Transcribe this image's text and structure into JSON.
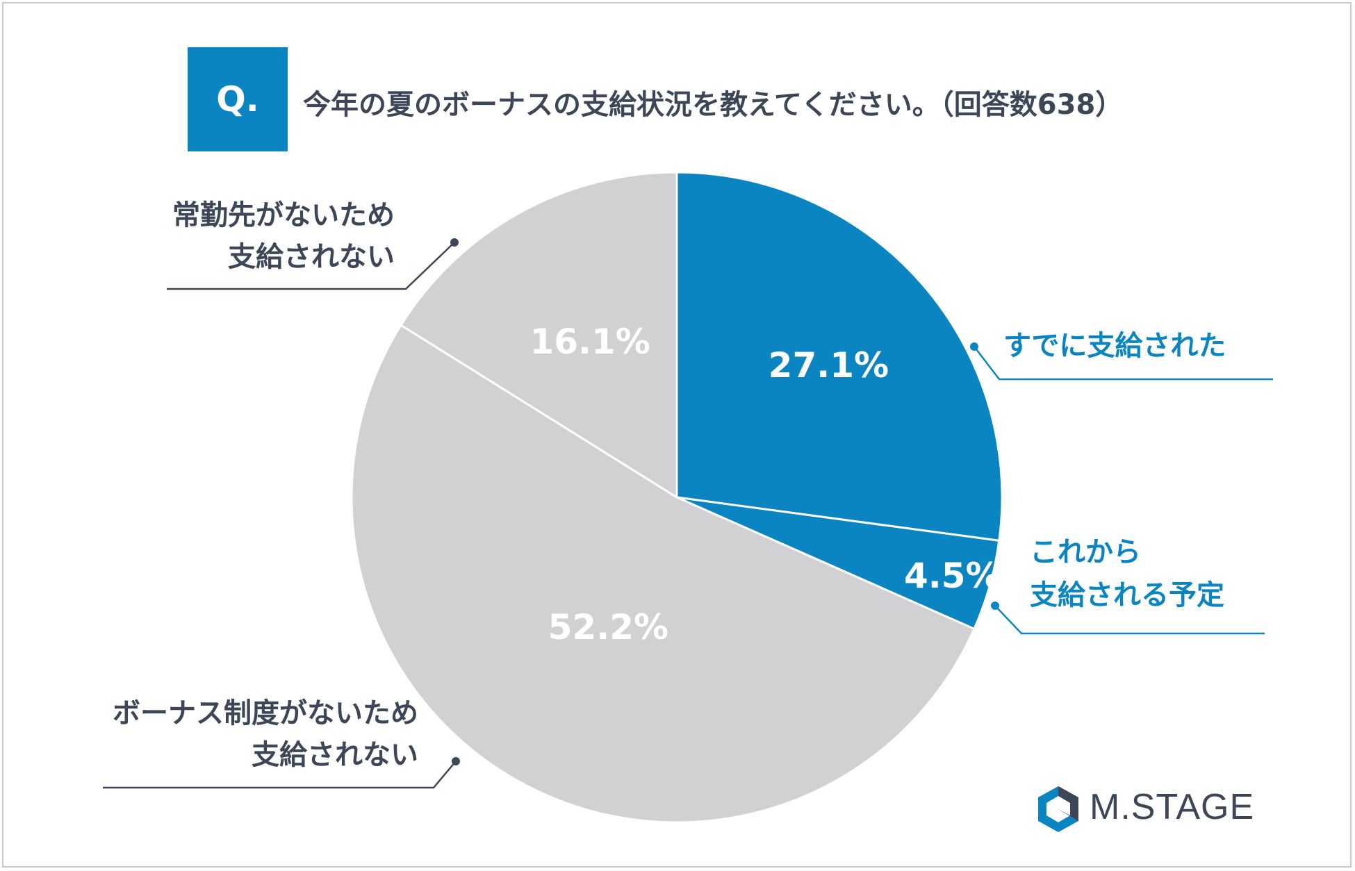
{
  "header": {
    "q_label": "Q.",
    "question": "今年の夏のボーナスの支給状況を教えてください。（回答数638）"
  },
  "colors": {
    "blue": "#0a85c2",
    "gray": "#d1d1d3",
    "dark_text": "#3c4656"
  },
  "chart_data": {
    "type": "pie",
    "title": "今年の夏のボーナスの支給状況を教えてください。（回答数638）",
    "start": "12 o'clock",
    "direction": "clockwise",
    "slices": [
      {
        "label_lines": [
          "すでに支給された"
        ],
        "value": 27.1,
        "value_label": "27.1%",
        "color": "#0a85c2"
      },
      {
        "label_lines": [
          "これから",
          "支給される予定"
        ],
        "value": 4.5,
        "value_label": "4.5%",
        "color": "#0a85c2"
      },
      {
        "label_lines": [
          "ボーナス制度がないため",
          "支給されない"
        ],
        "value": 52.2,
        "value_label": "52.2%",
        "color": "#d1d1d3"
      },
      {
        "label_lines": [
          "常勤先がないため",
          "支給されない"
        ],
        "value": 16.1,
        "value_label": "16.1%",
        "color": "#d1d1d3"
      }
    ]
  },
  "logo": {
    "text": "M.STAGE",
    "icon": "hexagon-logo-icon"
  }
}
